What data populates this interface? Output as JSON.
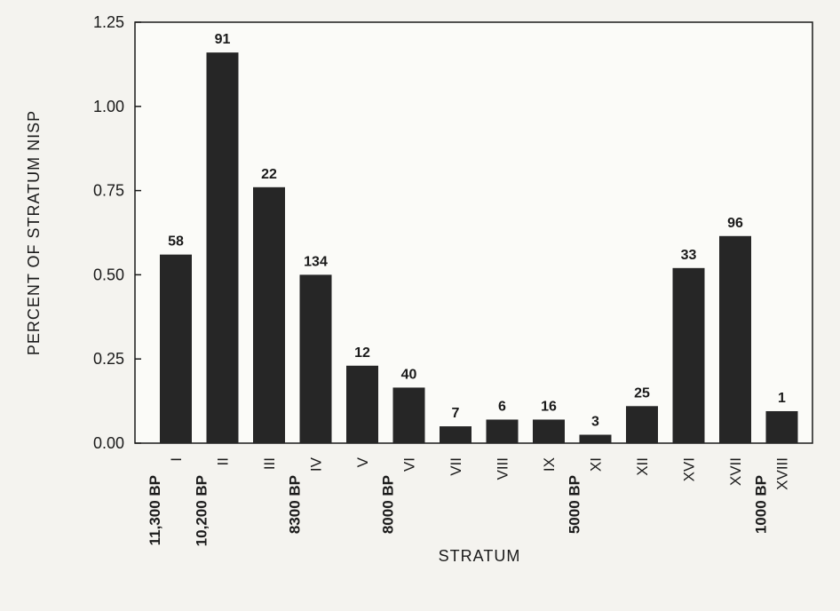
{
  "chart_data": {
    "type": "bar",
    "categories": [
      "I",
      "II",
      "III",
      "IV",
      "V",
      "VI",
      "VII",
      "VIII",
      "IX",
      "XI",
      "XII",
      "XVI",
      "XVII",
      "XVIII"
    ],
    "values": [
      0.56,
      1.16,
      0.76,
      0.5,
      0.23,
      0.165,
      0.05,
      0.07,
      0.07,
      0.025,
      0.11,
      0.52,
      0.615,
      0.095
    ],
    "data_labels": [
      "58",
      "91",
      "22",
      "134",
      "12",
      "40",
      "7",
      "6",
      "16",
      "3",
      "25",
      "33",
      "96",
      "1"
    ],
    "date_labels": [
      {
        "category": "I",
        "text": "11,300 BP"
      },
      {
        "category": "II",
        "text": "10,200 BP"
      },
      {
        "category": "IV",
        "text": "8300 BP"
      },
      {
        "category": "VI",
        "text": "8000 BP"
      },
      {
        "category": "XI",
        "text": "5000 BP"
      },
      {
        "category": "XVIII",
        "text": "1000 BP"
      }
    ],
    "yticks": [
      "0.00",
      "0.25",
      "0.50",
      "0.75",
      "1.00",
      "1.25"
    ],
    "xlabel": "STRATUM",
    "ylabel": "PERCENT OF STRATUM NISP",
    "ylim": [
      0,
      1.25
    ],
    "grid": false,
    "bar_color": "#262626"
  }
}
